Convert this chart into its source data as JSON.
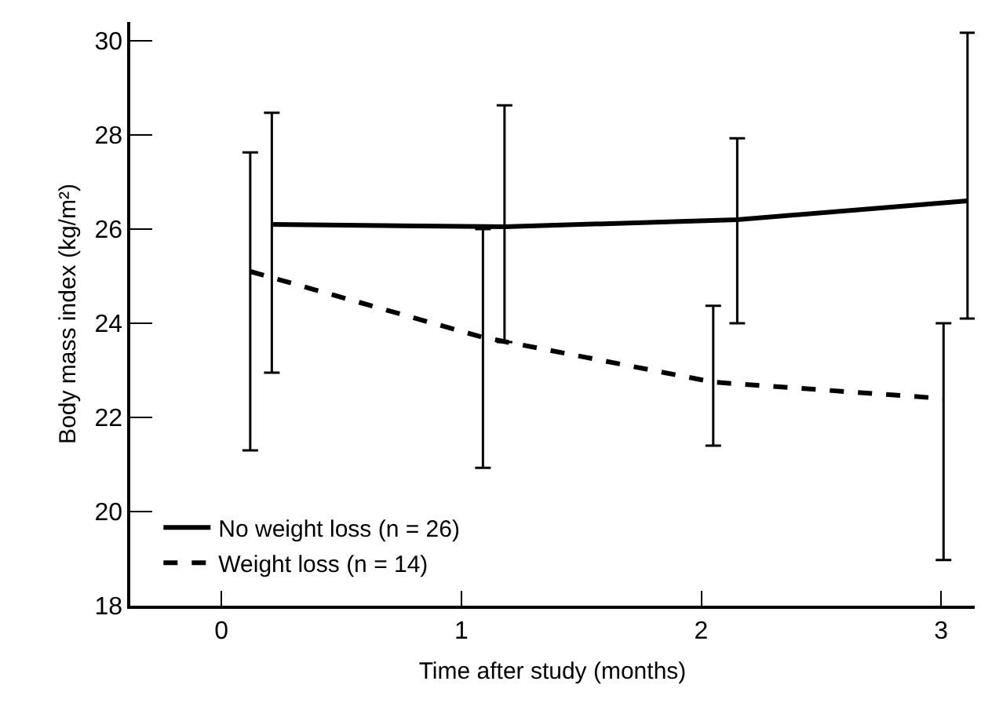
{
  "chart_data": {
    "type": "line",
    "xlabel": "Time after study (months)",
    "ylabel": "Body mass index (kg/m²)",
    "xlim": [
      -0.38,
      3.14
    ],
    "xticks": [
      0,
      1,
      2,
      3
    ],
    "ylim": [
      18,
      30.4
    ],
    "yticks": [
      18,
      20,
      22,
      24,
      26,
      28,
      30
    ],
    "grid": false,
    "legend": "bottom left",
    "marker": "none",
    "series": [
      {
        "name": "No weight loss (n = 26)",
        "color": "#000000",
        "line_style": "solid",
        "x": [
          0.21,
          1.18,
          2.15,
          3.11
        ],
        "values": [
          26.1,
          26.05,
          26.2,
          26.6
        ],
        "errors": [
          [
            22.95,
            28.47
          ],
          [
            23.6,
            28.63
          ],
          [
            24.0,
            27.93
          ],
          [
            24.1,
            30.17
          ]
        ]
      },
      {
        "name": "Weight loss (n = 14)",
        "color": "#000000",
        "line_style": "dashed",
        "x": [
          0.12,
          1.09,
          2.05,
          3.01
        ],
        "values": [
          25.1,
          23.7,
          22.75,
          22.4
        ],
        "errors": [
          [
            21.3,
            27.63
          ],
          [
            20.93,
            26.0
          ],
          [
            21.4,
            24.37
          ],
          [
            18.97,
            24.0
          ]
        ]
      }
    ]
  }
}
